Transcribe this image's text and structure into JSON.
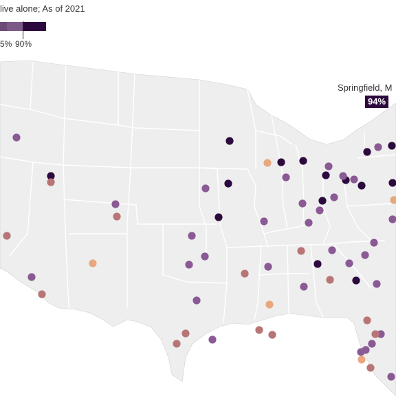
{
  "header": {
    "subtitle": "live alone; As of 2021"
  },
  "legend": {
    "labels": [
      "5%",
      "90%"
    ],
    "colors": [
      "#6b4a78",
      "#7d5a86",
      "#2d0a3e"
    ]
  },
  "tooltip": {
    "name": "Springfield, M",
    "value": "94%"
  },
  "colors": {
    "land": "#eeeeee",
    "border": "#ffffff",
    "outline": "#d0d0d0",
    "water": "#ffffff"
  },
  "chart_data": {
    "type": "scatter",
    "series": [
      {
        "color": "#2d0a3e",
        "points": [
          [
            74,
            256
          ],
          [
            334,
            205
          ],
          [
            409,
            236
          ],
          [
            441,
            234
          ],
          [
            534,
            221
          ],
          [
            570,
            212
          ],
          [
            474,
            255
          ],
          [
            503,
            262
          ],
          [
            526,
            270
          ],
          [
            571,
            266
          ],
          [
            469,
            292
          ],
          [
            332,
            267
          ],
          [
            318,
            316
          ],
          [
            462,
            384
          ],
          [
            518,
            408
          ]
        ]
      },
      {
        "color": "#8a5a94",
        "points": [
          [
            24,
            200
          ],
          [
            550,
            214
          ],
          [
            478,
            242
          ],
          [
            499,
            256
          ],
          [
            515,
            261
          ],
          [
            416,
            258
          ],
          [
            299,
            274
          ],
          [
            486,
            287
          ],
          [
            440,
            296
          ],
          [
            465,
            306
          ],
          [
            449,
            324
          ],
          [
            384,
            322
          ],
          [
            168,
            297
          ],
          [
            279,
            343
          ],
          [
            571,
            319
          ],
          [
            483,
            364
          ],
          [
            544,
            353
          ],
          [
            275,
            385
          ],
          [
            298,
            373
          ],
          [
            390,
            388
          ],
          [
            508,
            383
          ],
          [
            531,
            371
          ],
          [
            548,
            413
          ],
          [
            442,
            417
          ],
          [
            46,
            403
          ],
          [
            286,
            437
          ],
          [
            309,
            494
          ],
          [
            541,
            500
          ],
          [
            554,
            486
          ],
          [
            525,
            512
          ],
          [
            532,
            509
          ],
          [
            569,
            548
          ]
        ]
      },
      {
        "color": "#b87577",
        "points": [
          [
            74,
            265
          ],
          [
            170,
            315
          ],
          [
            10,
            343
          ],
          [
            438,
            365
          ],
          [
            356,
            398
          ],
          [
            480,
            407
          ],
          [
            61,
            428
          ],
          [
            270,
            485
          ],
          [
            257,
            500
          ],
          [
            377,
            480
          ],
          [
            396,
            487
          ],
          [
            534,
            466
          ],
          [
            546,
            486
          ],
          [
            539,
            535
          ]
        ]
      },
      {
        "color": "#e8a77e",
        "points": [
          [
            389,
            237
          ],
          [
            135,
            383
          ],
          [
            392,
            443
          ],
          [
            526,
            523
          ],
          [
            573,
            291
          ]
        ]
      }
    ]
  }
}
